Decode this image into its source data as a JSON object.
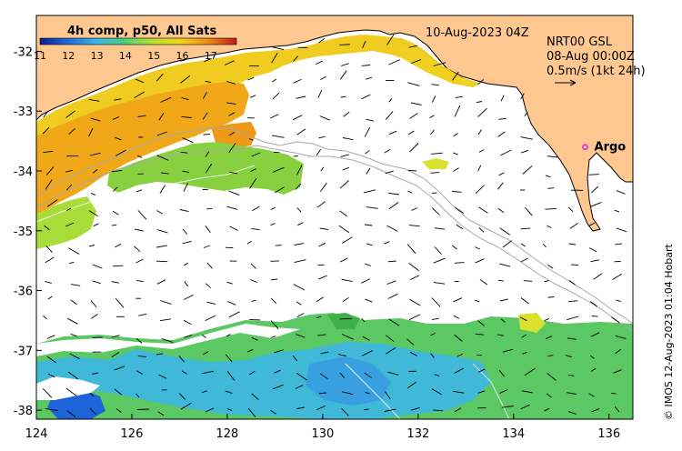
{
  "colorbar": {
    "title": "4h comp, p50, All Sats",
    "ticks": [
      "11",
      "12",
      "13",
      "14",
      "15",
      "16",
      "17"
    ],
    "range": [
      11,
      17.9
    ]
  },
  "header": {
    "date": "10-Aug-2023 04Z",
    "product": "NRT00 GSL",
    "product_time": "08-Aug 00:00Z",
    "scale": "0.5m/s (1kt 24h)"
  },
  "axes": {
    "x_ticks": [
      "124",
      "126",
      "128",
      "130",
      "132",
      "134",
      "136"
    ],
    "y_ticks": [
      "-32",
      "-33",
      "-34",
      "-35",
      "-36",
      "-37",
      "-38"
    ],
    "lon_range": [
      124,
      136.5
    ],
    "lat_range": [
      -31.4,
      -38.15
    ]
  },
  "marker": {
    "label": "Argo",
    "lon": 135.5,
    "lat": -33.6,
    "color": "#e020e0"
  },
  "credit": "© IMOS 12-Aug-2023 01:04 Hobart",
  "colors": {
    "land": "#ffc890",
    "frame": "#000000",
    "current_arrow": "#000000",
    "bathymetry": "#a8a8a8",
    "sst_stops": [
      "#0a2aa8",
      "#1e7fe8",
      "#3fbfe0",
      "#5cd070",
      "#b8e038",
      "#f0d818",
      "#f0a818",
      "#e86010",
      "#c81e1e"
    ]
  }
}
